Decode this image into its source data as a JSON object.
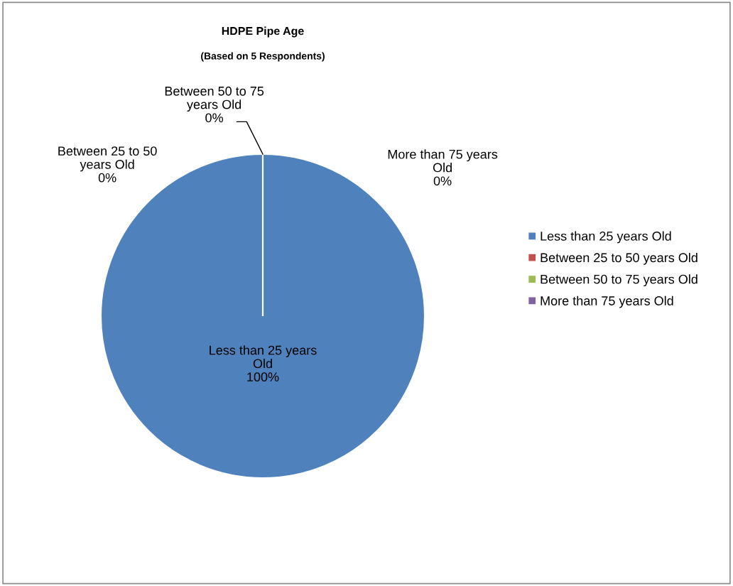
{
  "chart_data": {
    "type": "pie",
    "title": "HDPE Pipe Age",
    "subtitle": "(Based on 5 Respondents)",
    "categories": [
      "Less than 25 years Old",
      "Between 25 to 50 years Old",
      "Between 50 to 75 years Old",
      "More than 75 years Old"
    ],
    "values": [
      100,
      0,
      0,
      0
    ],
    "colors": [
      "#4f81bd",
      "#c0504d",
      "#9bbb59",
      "#8064a2"
    ],
    "value_labels": [
      "100%",
      "0%",
      "0%",
      "0%"
    ],
    "legend": "right"
  }
}
